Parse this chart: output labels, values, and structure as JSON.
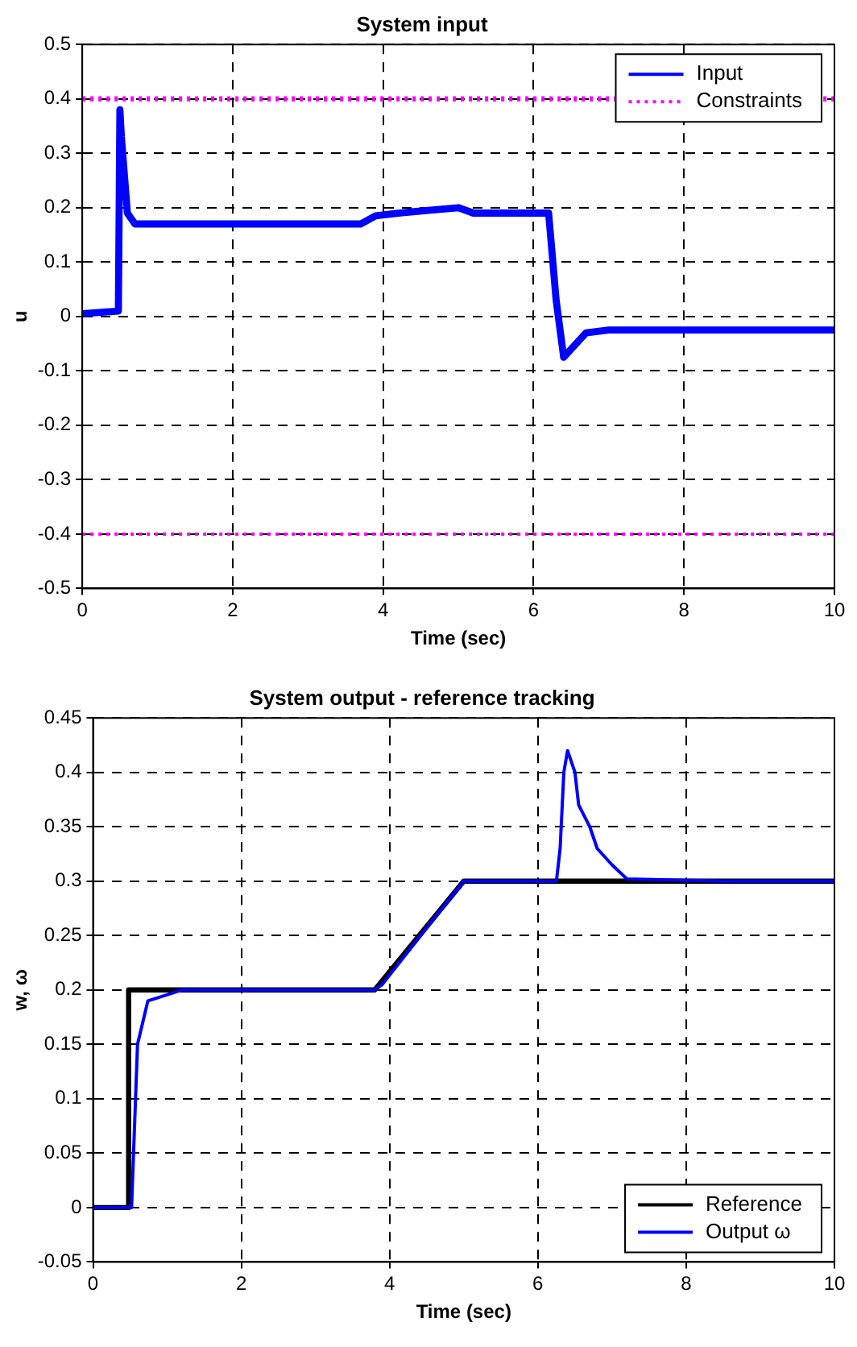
{
  "chart_data": [
    {
      "type": "line",
      "title": "System input",
      "xlabel": "Time (sec)",
      "ylabel": "u",
      "xlim": [
        0,
        10
      ],
      "xticks": [
        0,
        2,
        4,
        6,
        8,
        10
      ],
      "ylim": [
        -0.5,
        0.5
      ],
      "yticks": [
        -0.5,
        -0.4,
        -0.3,
        -0.2,
        -0.1,
        0,
        0.1,
        0.2,
        0.3,
        0.4,
        0.5
      ],
      "grid": true,
      "legend": "top right",
      "series": [
        {
          "name": "Input",
          "color": "#0000ff",
          "line_style": "solid",
          "x": [
            0,
            0.48,
            0.5,
            0.52,
            0.6,
            0.7,
            1.5,
            2.5,
            3.7,
            3.9,
            4.2,
            4.6,
            5.0,
            5.2,
            6.2,
            6.3,
            6.4,
            6.5,
            6.7,
            7.0,
            8.0,
            9.0,
            10.0
          ],
          "values": [
            0.005,
            0.01,
            0.38,
            0.33,
            0.19,
            0.17,
            0.17,
            0.17,
            0.17,
            0.185,
            0.19,
            0.195,
            0.2,
            0.19,
            0.19,
            0.03,
            -0.075,
            -0.06,
            -0.03,
            -0.025,
            -0.025,
            -0.025,
            -0.025
          ]
        },
        {
          "name": "Constraints",
          "color": "#ff00ff",
          "line_style": "dotted",
          "x": [
            0,
            10
          ],
          "values": [
            0.4,
            0.4
          ]
        },
        {
          "color": "#ff00ff",
          "line_style": "dotted",
          "x": [
            0,
            10
          ],
          "values": [
            -0.4,
            -0.4
          ]
        }
      ]
    },
    {
      "type": "line",
      "title": "System output - reference tracking",
      "xlabel": "Time (sec)",
      "ylabel": "w, ω",
      "xlim": [
        0,
        10
      ],
      "xticks": [
        0,
        2,
        4,
        6,
        8,
        10
      ],
      "ylim": [
        -0.05,
        0.45
      ],
      "yticks": [
        -0.05,
        0,
        0.05,
        0.1,
        0.15,
        0.2,
        0.25,
        0.3,
        0.35,
        0.4,
        0.45
      ],
      "grid": true,
      "legend": "bottom right",
      "series": [
        {
          "name": "Reference",
          "color": "#000000",
          "line_style": "solid",
          "x": [
            0,
            0.48,
            0.48,
            3.8,
            5.0,
            10
          ],
          "values": [
            0,
            0,
            0.2,
            0.2,
            0.3,
            0.3
          ]
        },
        {
          "name": "Output ω",
          "color": "#0000ff",
          "line_style": "solid",
          "x": [
            0,
            0.52,
            0.6,
            0.67,
            0.74,
            1.2,
            2.5,
            3.8,
            3.9,
            5.0,
            6.25,
            6.3,
            6.35,
            6.4,
            6.5,
            6.55,
            6.7,
            6.8,
            7.0,
            7.2,
            8.5,
            10
          ],
          "values": [
            0,
            0,
            0.15,
            0.17,
            0.19,
            0.2,
            0.2,
            0.2,
            0.205,
            0.3,
            0.3,
            0.33,
            0.4,
            0.42,
            0.4,
            0.37,
            0.35,
            0.33,
            0.315,
            0.302,
            0.3,
            0.3
          ]
        }
      ]
    }
  ]
}
